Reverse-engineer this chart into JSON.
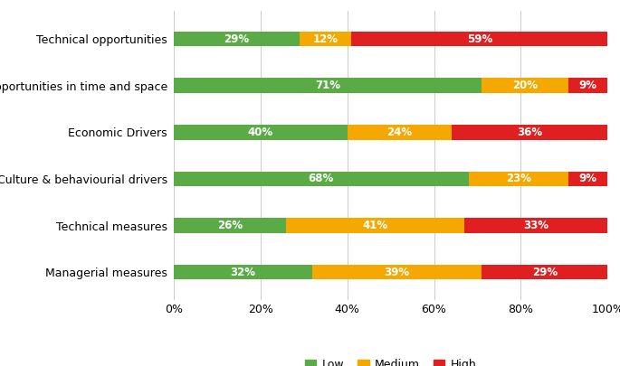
{
  "categories": [
    "Technical opportunities",
    "Opportunities in time and space",
    "Economic Drivers",
    "Culture & behaviourial drivers",
    "Technical measures",
    "Managerial measures"
  ],
  "low": [
    29,
    71,
    40,
    68,
    26,
    32
  ],
  "medium": [
    12,
    20,
    24,
    23,
    41,
    39
  ],
  "high": [
    59,
    9,
    36,
    9,
    33,
    29
  ],
  "low_color": "#5aaa46",
  "medium_color": "#f5a800",
  "high_color": "#e02020",
  "text_color": "#ffffff",
  "background_color": "#ffffff",
  "legend_labels": [
    "Low",
    "Medium",
    "High"
  ],
  "xlabel_ticks": [
    "0%",
    "20%",
    "40%",
    "60%",
    "80%",
    "100%"
  ],
  "bar_height": 0.32,
  "label_fontsize": 8.5,
  "tick_fontsize": 9,
  "legend_fontsize": 9
}
